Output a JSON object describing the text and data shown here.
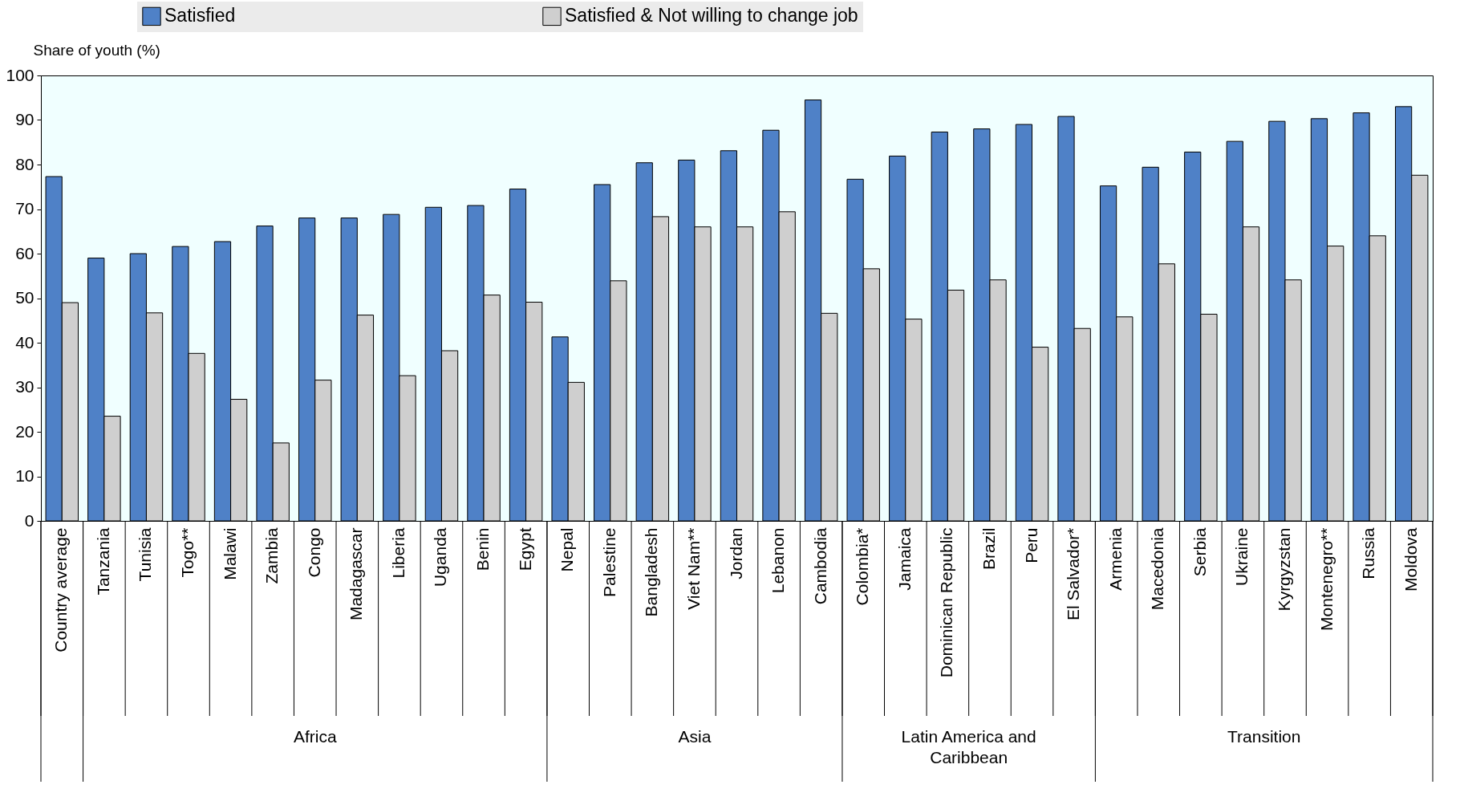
{
  "chart_data": {
    "type": "bar",
    "ylabel": "Share of youth (%)",
    "categories": [
      "Country average",
      "Tanzania",
      "Tunisia",
      "Togo**",
      "Malawi",
      "Zambia",
      "Congo",
      "Madagascar",
      "Liberia",
      "Uganda",
      "Benin",
      "Egypt",
      "Nepal",
      "Palestine",
      "Bangladesh",
      "Viet Nam**",
      "Jordan",
      "Lebanon",
      "Cambodia",
      "Colombia*",
      "Jamaica",
      "Dominican Republic",
      "Brazil",
      "Peru",
      "El Salvador*",
      "Armenia",
      "Macedonia",
      "Serbia",
      "Ukraine",
      "Kyrgyzstan",
      "Montenegro**",
      "Russia",
      "Moldova"
    ],
    "series": [
      {
        "name": "Satisfied",
        "color": "#4f81c7",
        "values": [
          77.3,
          59,
          60,
          61.6,
          62.7,
          66.2,
          68,
          68,
          68.8,
          70.4,
          70.8,
          74.5,
          41.3,
          75.5,
          80.4,
          81,
          83.1,
          87.7,
          94.5,
          76.7,
          81.9,
          87.3,
          88,
          89,
          90.8,
          75.2,
          79.4,
          82.8,
          85.2,
          89.7,
          90.3,
          91.6,
          93
        ]
      },
      {
        "name": "Satisfied & Not willing to change job",
        "color": "#cfcfcf",
        "values": [
          49,
          23.5,
          46.7,
          37.6,
          27.3,
          17.5,
          31.6,
          46.2,
          32.6,
          38.2,
          50.7,
          49.1,
          31.1,
          53.9,
          68.3,
          66,
          66,
          69.4,
          46.6,
          56.6,
          45.3,
          51.8,
          54.1,
          39,
          43.2,
          45.8,
          57.7,
          46.4,
          66,
          54.1,
          61.7,
          64,
          77.6
        ]
      }
    ],
    "ylim": [
      0,
      100
    ],
    "yticks": [
      0,
      10,
      20,
      30,
      40,
      50,
      60,
      70,
      80,
      90,
      100
    ],
    "annotations": [
      "Africa",
      "Asia",
      "Latin America and Caribbean",
      "Transition"
    ],
    "legend": "top"
  }
}
